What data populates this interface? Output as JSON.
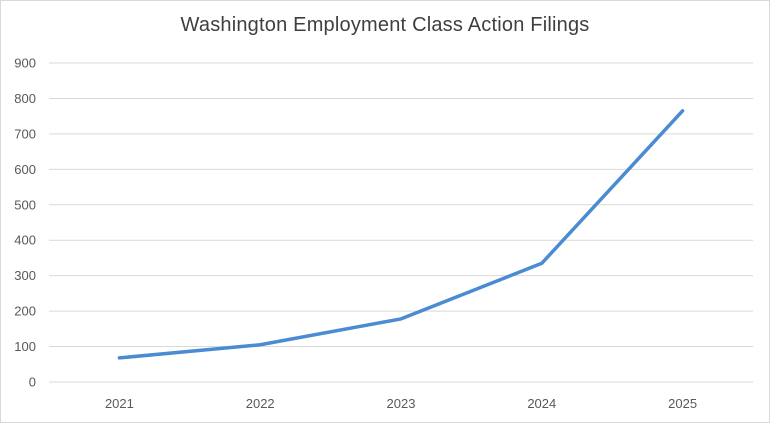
{
  "chart_data": {
    "type": "line",
    "title": "Washington Employment Class Action Filings",
    "categories": [
      "2021",
      "2022",
      "2023",
      "2024",
      "2025"
    ],
    "values": [
      68,
      105,
      178,
      335,
      765
    ],
    "xlabel": "",
    "ylabel": "",
    "ylim": [
      0,
      900
    ],
    "ytick_step": 100,
    "grid": true,
    "legend": false,
    "line_color": "#4A8BD2",
    "line_width": 3.5,
    "gridline_color": "#D9D9D9",
    "axis_line_color": "#D9D9D9",
    "tick_label_color": "#595959",
    "title_color": "#3F3F3F",
    "background_color": "#FFFFFF",
    "border_color": "#D9D9D9"
  }
}
